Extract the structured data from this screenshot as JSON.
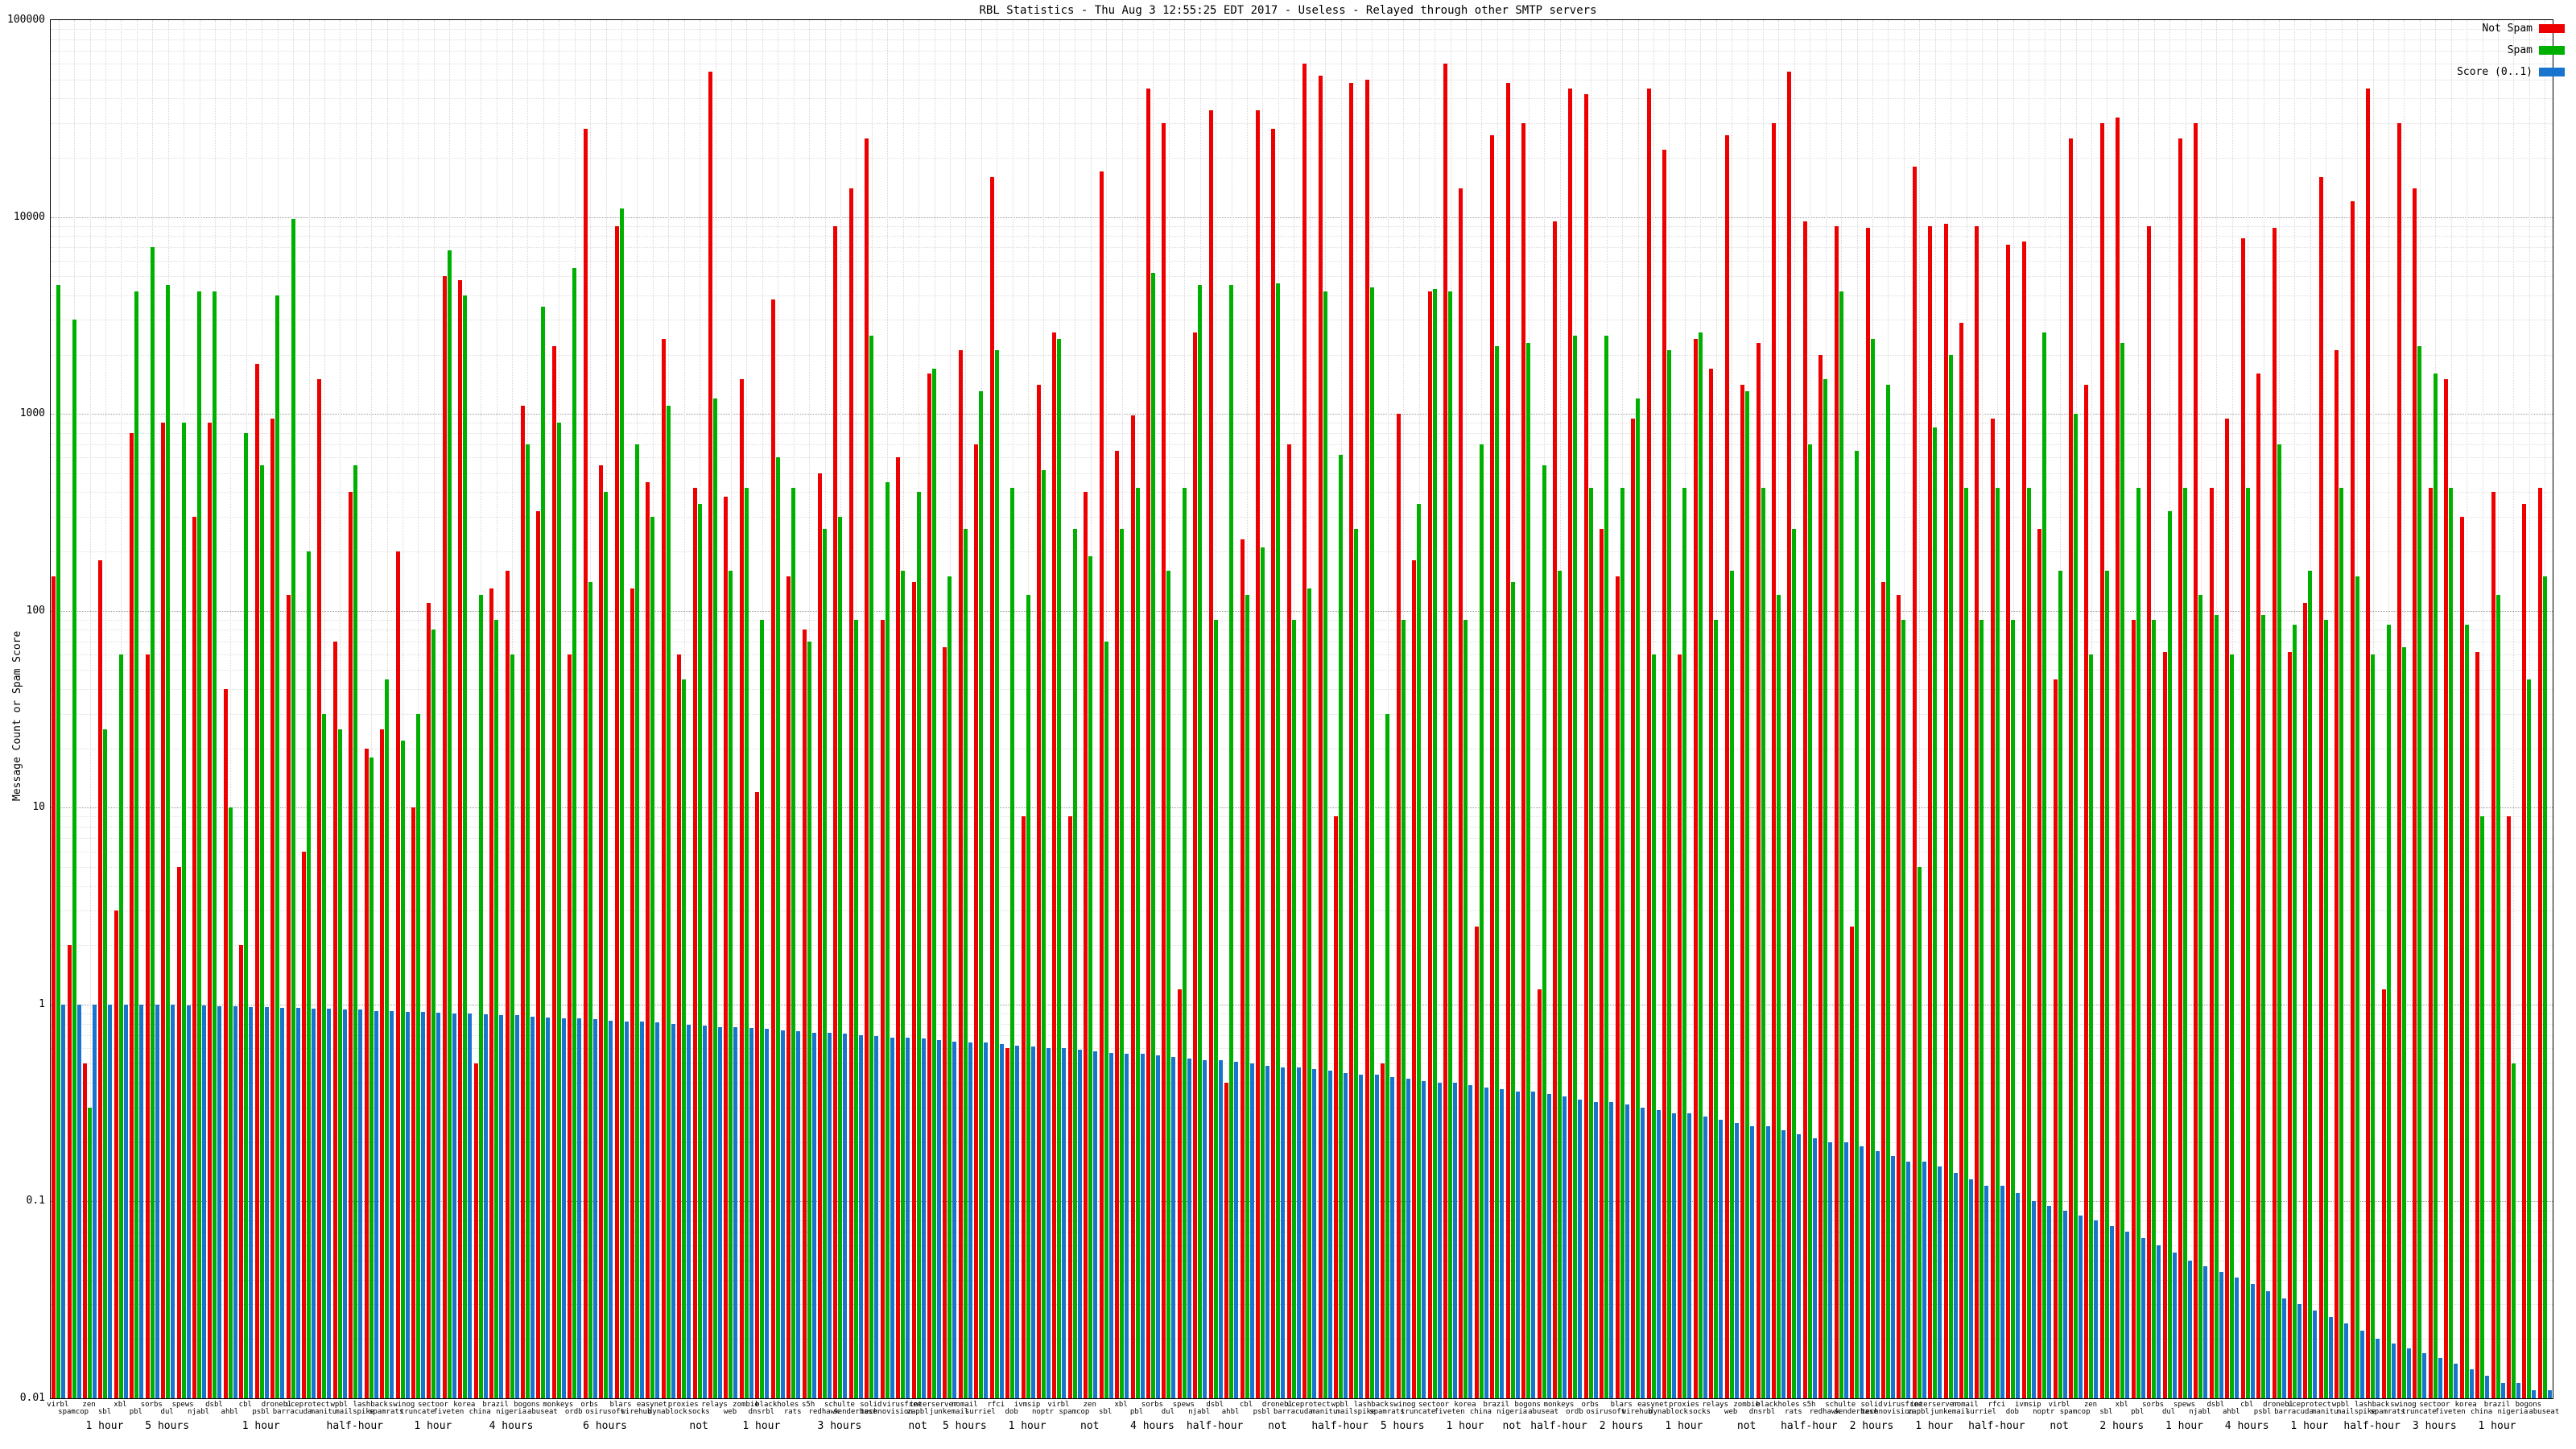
{
  "chart_data": {
    "type": "bar",
    "scale": "log",
    "title": "RBL Statistics - Thu Aug 3 12:55:25 EDT 2017 - Useless - Relayed through other SMTP servers",
    "ylabel": "Message Count or Spam Score",
    "xlabel": "",
    "ylim": [
      0.01,
      100000
    ],
    "grid": true,
    "legend_position": "top-right",
    "yticks": [
      {
        "v": 100000,
        "label": "100000"
      },
      {
        "v": 10000,
        "label": "10000"
      },
      {
        "v": 1000,
        "label": "1000"
      },
      {
        "v": 100,
        "label": "100"
      },
      {
        "v": 10,
        "label": "10"
      },
      {
        "v": 1,
        "label": "1"
      },
      {
        "v": 0.1,
        "label": "0.1"
      },
      {
        "v": 0.01,
        "label": "0.01"
      }
    ],
    "categories": [
      "virbl",
      "spamcop",
      "zen",
      "sbl",
      "xbl",
      "pbl",
      "sorbs",
      "dul",
      "spews",
      "njabl",
      "dsbl",
      "ahbl",
      "cbl",
      "psbl",
      "dronebl",
      "barracuda",
      "uceprotect",
      "manitu",
      "wpbl",
      "mailspike",
      "lashback",
      "spamrats",
      "swinog",
      "truncate",
      "sectoor",
      "fiveten",
      "korea",
      "china",
      "brazil",
      "nigeria",
      "bogons",
      "abuseat",
      "monkeys",
      "ordb",
      "orbs",
      "osirusoft",
      "blars",
      "wirehub",
      "easynet",
      "dynablock",
      "proxies",
      "socks",
      "relays",
      "web",
      "zombie",
      "dnsrbl",
      "blackholes",
      "rats",
      "s5h",
      "redhawk",
      "schulte",
      "senderbase",
      "solid",
      "technovision",
      "virusfree",
      "zapbl",
      "interserver",
      "junkemail",
      "nomail",
      "surriel",
      "rfci",
      "dob",
      "ivmsip",
      "noptr",
      "virbl",
      "spamcop",
      "zen",
      "sbl",
      "xbl",
      "pbl",
      "sorbs",
      "dul",
      "spews",
      "njabl",
      "dsbl",
      "ahbl",
      "cbl",
      "psbl",
      "dronebl",
      "barracuda",
      "uceprotect",
      "manitu",
      "wpbl",
      "mailspike",
      "lashback",
      "spamrats",
      "swinog",
      "truncate",
      "sectoor",
      "fiveten",
      "korea",
      "china",
      "brazil",
      "nigeria",
      "bogons",
      "abuseat",
      "monkeys",
      "ordb",
      "orbs",
      "osirusoft",
      "blars",
      "wirehub",
      "easynet",
      "dynablock",
      "proxies",
      "socks",
      "relays",
      "web",
      "zombie",
      "dnsrbl",
      "blackholes",
      "rats",
      "s5h",
      "redhawk",
      "schulte",
      "senderbase",
      "solid",
      "technovision",
      "virusfree",
      "zapbl",
      "interserver",
      "junkemail",
      "nomail",
      "surriel",
      "rfci",
      "dob",
      "ivmsip",
      "noptr",
      "virbl",
      "spamcop",
      "zen",
      "sbl",
      "xbl",
      "pbl",
      "sorbs",
      "dul",
      "spews",
      "njabl",
      "dsbl",
      "ahbl",
      "cbl",
      "psbl",
      "dronebl",
      "barracuda",
      "uceprotect",
      "manitu",
      "wpbl",
      "mailspike",
      "lashback",
      "spamrats",
      "swinog",
      "truncate",
      "sectoor",
      "fiveten",
      "korea",
      "china",
      "brazil",
      "nigeria",
      "bogons",
      "abuseat"
    ],
    "series": [
      {
        "name": "Not Spam",
        "color": "#ee0000",
        "values": [
          150,
          2,
          0.5,
          180,
          3,
          800,
          60,
          900,
          5,
          300,
          900,
          40,
          2,
          1800,
          950,
          120,
          6,
          1500,
          70,
          400,
          20,
          25,
          200,
          10,
          110,
          5000,
          4800,
          0.5,
          130,
          160,
          1100,
          320,
          2200,
          60,
          28000,
          550,
          9000,
          130,
          450,
          2400,
          60,
          420,
          55000,
          380,
          1500,
          12,
          3800,
          150,
          80,
          500,
          9000,
          14000,
          25000,
          90,
          600,
          140,
          1600,
          65,
          2100,
          700,
          16000,
          0.6,
          9,
          1400,
          2600,
          9,
          400,
          17000,
          650,
          980,
          45000,
          30000,
          1.2,
          2600,
          35000,
          0.4,
          230,
          35000,
          28000,
          700,
          60000,
          52000,
          9,
          48000,
          50000,
          0.5,
          1000,
          180,
          4200,
          60000,
          14000,
          2.5,
          26000,
          48000,
          30000,
          1.2,
          9500,
          45000,
          42000,
          260,
          150,
          950,
          45000,
          22000,
          60,
          2400,
          1700,
          26000,
          1400,
          2300,
          30000,
          55000,
          9500,
          2000,
          9000,
          2.5,
          8800,
          140,
          120,
          18000,
          9000,
          9200,
          2900,
          9000,
          950,
          7200,
          7500,
          260,
          45,
          25000,
          1400,
          30000,
          32000,
          90,
          9000,
          62,
          25000,
          30000,
          420,
          950,
          7800,
          1600,
          8800,
          62,
          110,
          16000,
          2100,
          12000,
          45000,
          1.2,
          30000,
          14000,
          420,
          1500,
          300,
          62,
          400,
          9,
          350,
          420
        ]
      },
      {
        "name": "Spam",
        "color": "#00b000",
        "values": [
          4500,
          3000,
          0.3,
          25,
          60,
          4200,
          7000,
          4500,
          900,
          4200,
          4200,
          10,
          800,
          550,
          4000,
          9800,
          200,
          30,
          25,
          550,
          18,
          45,
          22,
          30,
          80,
          6800,
          4000,
          120,
          90,
          60,
          700,
          3500,
          900,
          5500,
          140,
          400,
          11000,
          700,
          300,
          1100,
          45,
          350,
          1200,
          160,
          420,
          90,
          600,
          420,
          70,
          260,
          300,
          90,
          2500,
          450,
          160,
          400,
          1700,
          150,
          260,
          1300,
          2100,
          420,
          120,
          520,
          2400,
          260,
          190,
          70,
          260,
          420,
          5200,
          160,
          420,
          4500,
          90,
          4500,
          120,
          210,
          4600,
          90,
          130,
          4200,
          620,
          260,
          4400,
          30,
          90,
          350,
          4300,
          4200,
          90,
          700,
          2200,
          140,
          2300,
          550,
          160,
          2500,
          420,
          2500,
          420,
          1200,
          60,
          2100,
          420,
          2600,
          90,
          160,
          1300,
          420,
          120,
          260,
          700,
          1500,
          4200,
          650,
          2400,
          1400,
          90,
          5,
          850,
          2000,
          420,
          90,
          420,
          90,
          420,
          2600,
          160,
          1000,
          60,
          160,
          2300,
          420,
          90,
          320,
          420,
          120,
          95,
          60,
          420,
          95,
          700,
          85,
          160,
          90,
          420,
          150,
          60,
          85,
          65,
          2200,
          1600,
          420,
          85,
          9,
          120,
          0.5,
          45,
          150
        ]
      },
      {
        "name": "Score (0..1)",
        "color": "#1874cd",
        "values": [
          1,
          1,
          1,
          1,
          1,
          1,
          1,
          1,
          0.99,
          0.99,
          0.98,
          0.98,
          0.97,
          0.97,
          0.96,
          0.96,
          0.95,
          0.95,
          0.94,
          0.94,
          0.93,
          0.93,
          0.92,
          0.92,
          0.91,
          0.9,
          0.9,
          0.89,
          0.88,
          0.88,
          0.87,
          0.86,
          0.85,
          0.85,
          0.84,
          0.83,
          0.82,
          0.82,
          0.81,
          0.8,
          0.79,
          0.78,
          0.77,
          0.77,
          0.76,
          0.75,
          0.74,
          0.73,
          0.72,
          0.72,
          0.71,
          0.7,
          0.69,
          0.68,
          0.68,
          0.67,
          0.66,
          0.65,
          0.64,
          0.64,
          0.63,
          0.62,
          0.61,
          0.6,
          0.6,
          0.59,
          0.58,
          0.57,
          0.56,
          0.56,
          0.55,
          0.54,
          0.53,
          0.52,
          0.52,
          0.51,
          0.5,
          0.49,
          0.48,
          0.48,
          0.47,
          0.46,
          0.45,
          0.44,
          0.44,
          0.43,
          0.42,
          0.41,
          0.4,
          0.4,
          0.39,
          0.38,
          0.37,
          0.36,
          0.36,
          0.35,
          0.34,
          0.33,
          0.32,
          0.32,
          0.31,
          0.3,
          0.29,
          0.28,
          0.28,
          0.27,
          0.26,
          0.25,
          0.24,
          0.24,
          0.23,
          0.22,
          0.21,
          0.2,
          0.2,
          0.19,
          0.18,
          0.17,
          0.16,
          0.16,
          0.15,
          0.14,
          0.13,
          0.12,
          0.12,
          0.11,
          0.1,
          0.095,
          0.09,
          0.085,
          0.08,
          0.075,
          0.07,
          0.065,
          0.06,
          0.055,
          0.05,
          0.047,
          0.044,
          0.041,
          0.038,
          0.035,
          0.032,
          0.03,
          0.028,
          0.026,
          0.024,
          0.022,
          0.02,
          0.019,
          0.018,
          0.017,
          0.016,
          0.015,
          0.014,
          0.013,
          0.012,
          0.012,
          0.011,
          0.011
        ]
      }
    ],
    "period_labels": [
      {
        "i": 3,
        "label": "1 hour"
      },
      {
        "i": 7,
        "label": "5 hours"
      },
      {
        "i": 13,
        "label": "1 hour"
      },
      {
        "i": 19,
        "label": "half-hour"
      },
      {
        "i": 24,
        "label": "1 hour"
      },
      {
        "i": 29,
        "label": "4 hours"
      },
      {
        "i": 35,
        "label": "6 hours"
      },
      {
        "i": 41,
        "label": "not"
      },
      {
        "i": 45,
        "label": "1 hour"
      },
      {
        "i": 50,
        "label": "3 hours"
      },
      {
        "i": 55,
        "label": "not"
      },
      {
        "i": 58,
        "label": "5 hours"
      },
      {
        "i": 62,
        "label": "1 hour"
      },
      {
        "i": 66,
        "label": "not"
      },
      {
        "i": 70,
        "label": "4 hours"
      },
      {
        "i": 74,
        "label": "half-hour"
      },
      {
        "i": 78,
        "label": "not"
      },
      {
        "i": 82,
        "label": "half-hour"
      },
      {
        "i": 86,
        "label": "5 hours"
      },
      {
        "i": 90,
        "label": "1 hour"
      },
      {
        "i": 93,
        "label": "not"
      },
      {
        "i": 96,
        "label": "half-hour"
      },
      {
        "i": 100,
        "label": "2 hours"
      },
      {
        "i": 104,
        "label": "1 hour"
      },
      {
        "i": 108,
        "label": "not"
      },
      {
        "i": 112,
        "label": "half-hour"
      },
      {
        "i": 116,
        "label": "2 hours"
      },
      {
        "i": 120,
        "label": "1 hour"
      },
      {
        "i": 124,
        "label": "half-hour"
      },
      {
        "i": 128,
        "label": "not"
      },
      {
        "i": 132,
        "label": "2 hours"
      },
      {
        "i": 136,
        "label": "1 hour"
      },
      {
        "i": 140,
        "label": "4 hours"
      },
      {
        "i": 144,
        "label": "1 hour"
      },
      {
        "i": 148,
        "label": "half-hour"
      },
      {
        "i": 152,
        "label": "3 hours"
      },
      {
        "i": 156,
        "label": "1 hour"
      }
    ]
  }
}
